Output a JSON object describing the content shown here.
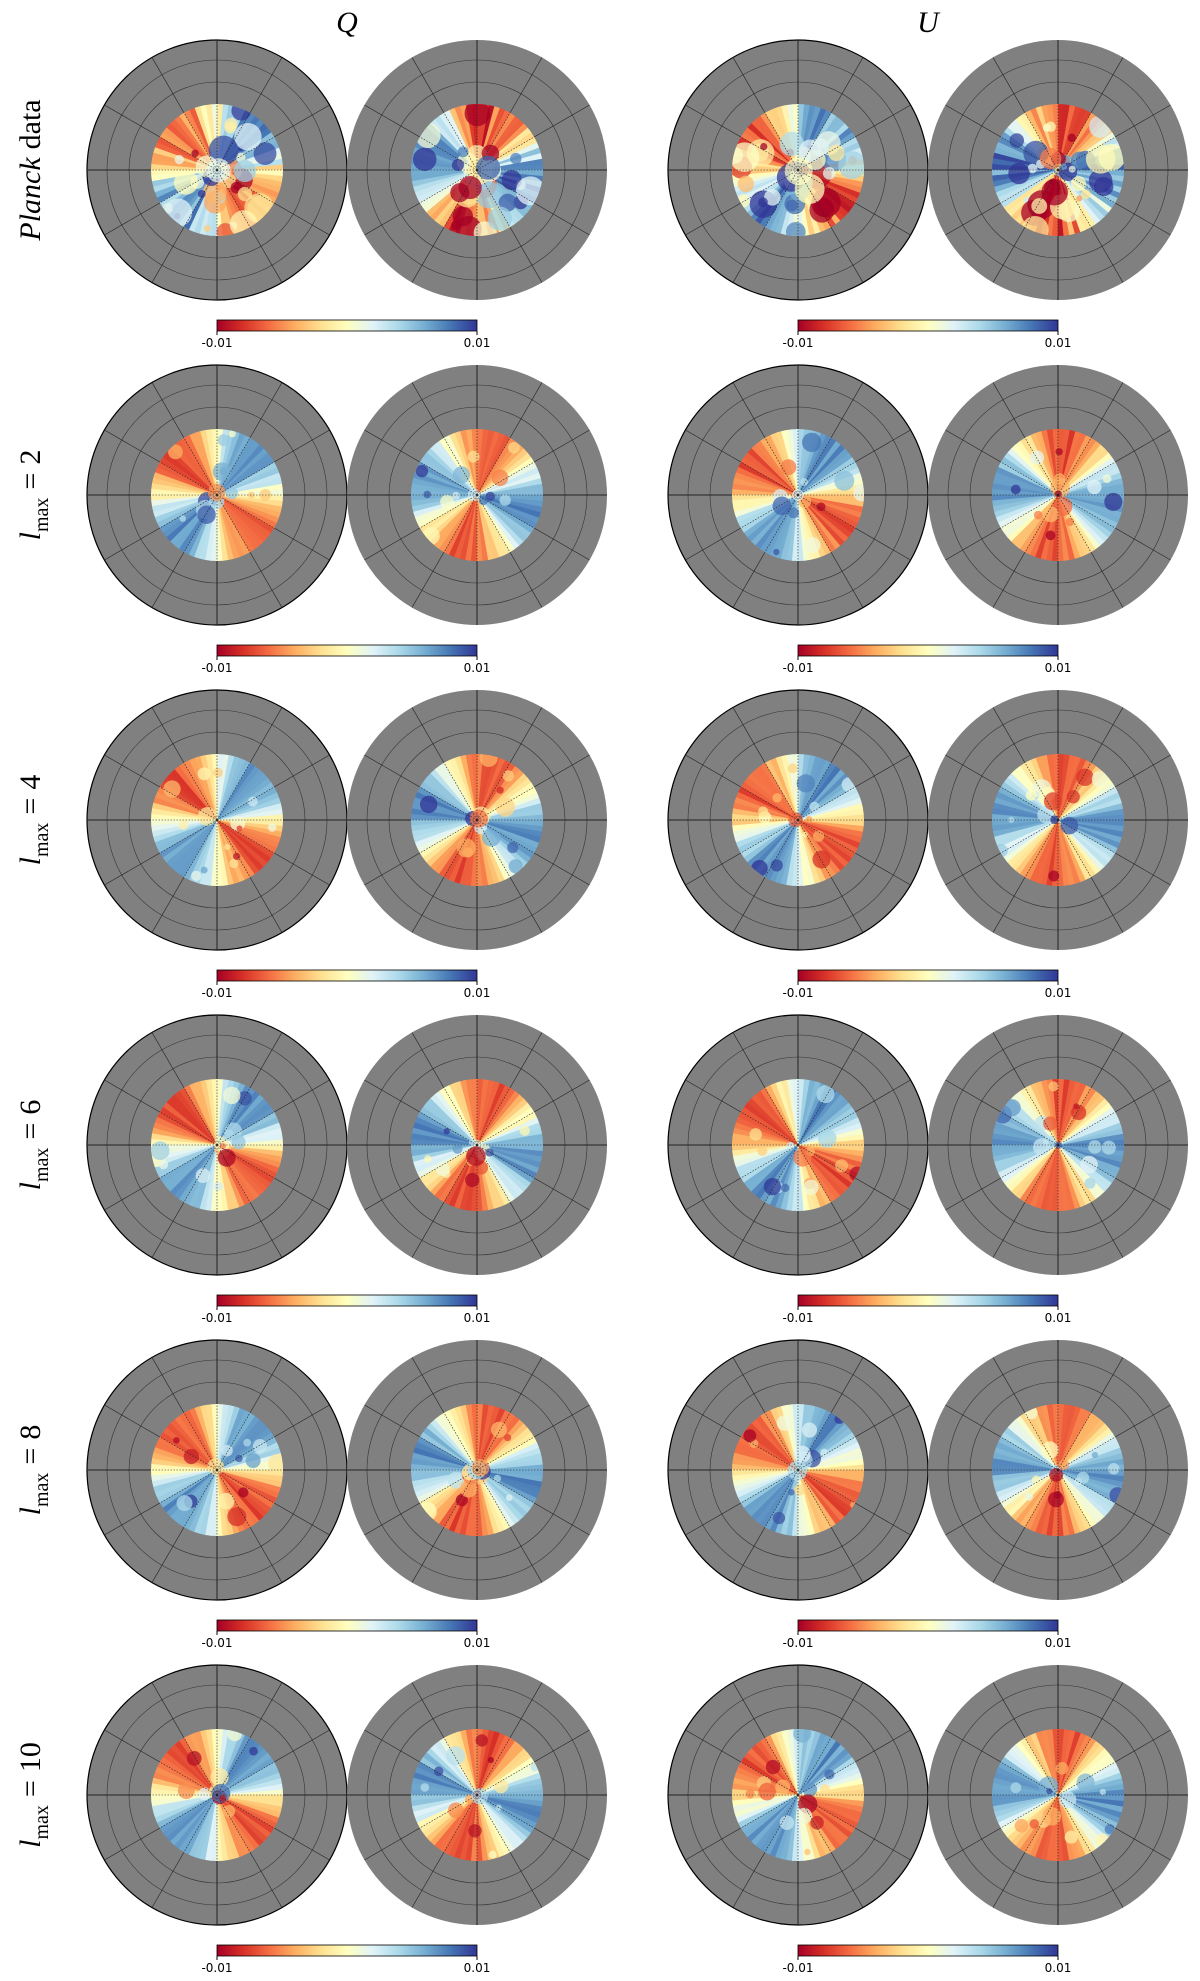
{
  "columns": [
    "Q",
    "U"
  ],
  "rows": [
    {
      "label_italic": "Planck",
      "label_text": "data"
    },
    {
      "symbol": "l",
      "subscript": "max",
      "relation": "=",
      "value": 2
    },
    {
      "symbol": "l",
      "subscript": "max",
      "relation": "=",
      "value": 4
    },
    {
      "symbol": "l",
      "subscript": "max",
      "relation": "=",
      "value": 6
    },
    {
      "symbol": "l",
      "subscript": "max",
      "relation": "=",
      "value": 8
    },
    {
      "symbol": "l",
      "subscript": "max",
      "relation": "=",
      "value": 10
    }
  ],
  "colorbar": {
    "lim": [
      -0.01,
      0.01
    ],
    "ticks": [
      -0.01,
      0.01
    ]
  }
}
